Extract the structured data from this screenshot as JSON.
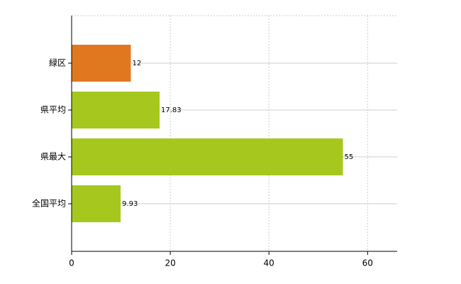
{
  "chart_data": {
    "type": "hbar",
    "categories": [
      "緑区",
      "県平均",
      "県最大",
      "全国平均"
    ],
    "values": [
      12,
      17.83,
      55,
      9.93
    ],
    "colors": [
      "#e07820",
      "#a6c81e",
      "#a6c81e",
      "#a6c81e"
    ],
    "xlim": [
      0,
      66
    ],
    "xticks": [
      0,
      20,
      40,
      60
    ],
    "grid": true
  }
}
